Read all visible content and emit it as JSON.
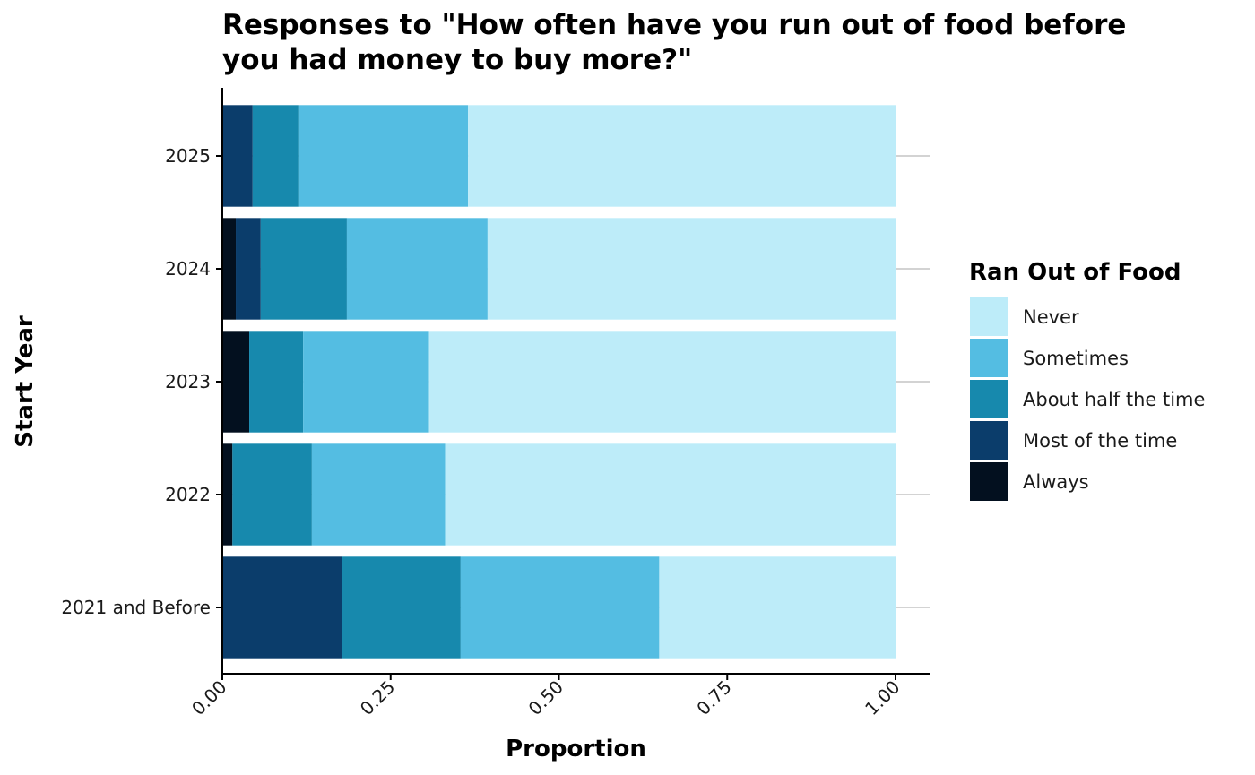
{
  "chart_data": {
    "type": "bar",
    "orientation": "horizontal",
    "stacked": true,
    "title": "Responses to \"How often have you run out of food before you had money to buy more?\"",
    "title_lines": [
      "Responses to \"How often have you run out of food before",
      "you had money to buy more?\""
    ],
    "xlabel": "Proportion",
    "ylabel": "Start Year",
    "xlim": [
      0,
      1
    ],
    "x_ticks": [
      "0.00",
      "0.25",
      "0.50",
      "0.75",
      "1.00"
    ],
    "grid": "horizontal major lines only",
    "categories": [
      "2025",
      "2024",
      "2023",
      "2022",
      "2021 and Before"
    ],
    "series": [
      {
        "name": "Always",
        "color": "#03101f",
        "values": [
          0.0,
          0.02,
          0.04,
          0.015,
          0.0
        ]
      },
      {
        "name": "Most of the time",
        "color": "#0b3d6b",
        "values": [
          0.045,
          0.037,
          0.0,
          0.0,
          0.178
        ]
      },
      {
        "name": "About half the time",
        "color": "#1789ad",
        "values": [
          0.068,
          0.128,
          0.08,
          0.118,
          0.176
        ]
      },
      {
        "name": "Sometimes",
        "color": "#54bde2",
        "values": [
          0.252,
          0.209,
          0.187,
          0.198,
          0.295
        ]
      },
      {
        "name": "Never",
        "color": "#bdecf9",
        "values": [
          0.635,
          0.606,
          0.693,
          0.669,
          0.351
        ]
      }
    ],
    "legend": {
      "title": "Ran Out of Food",
      "position": "right",
      "order": [
        "Never",
        "Sometimes",
        "About half the time",
        "Most of the time",
        "Always"
      ]
    }
  }
}
